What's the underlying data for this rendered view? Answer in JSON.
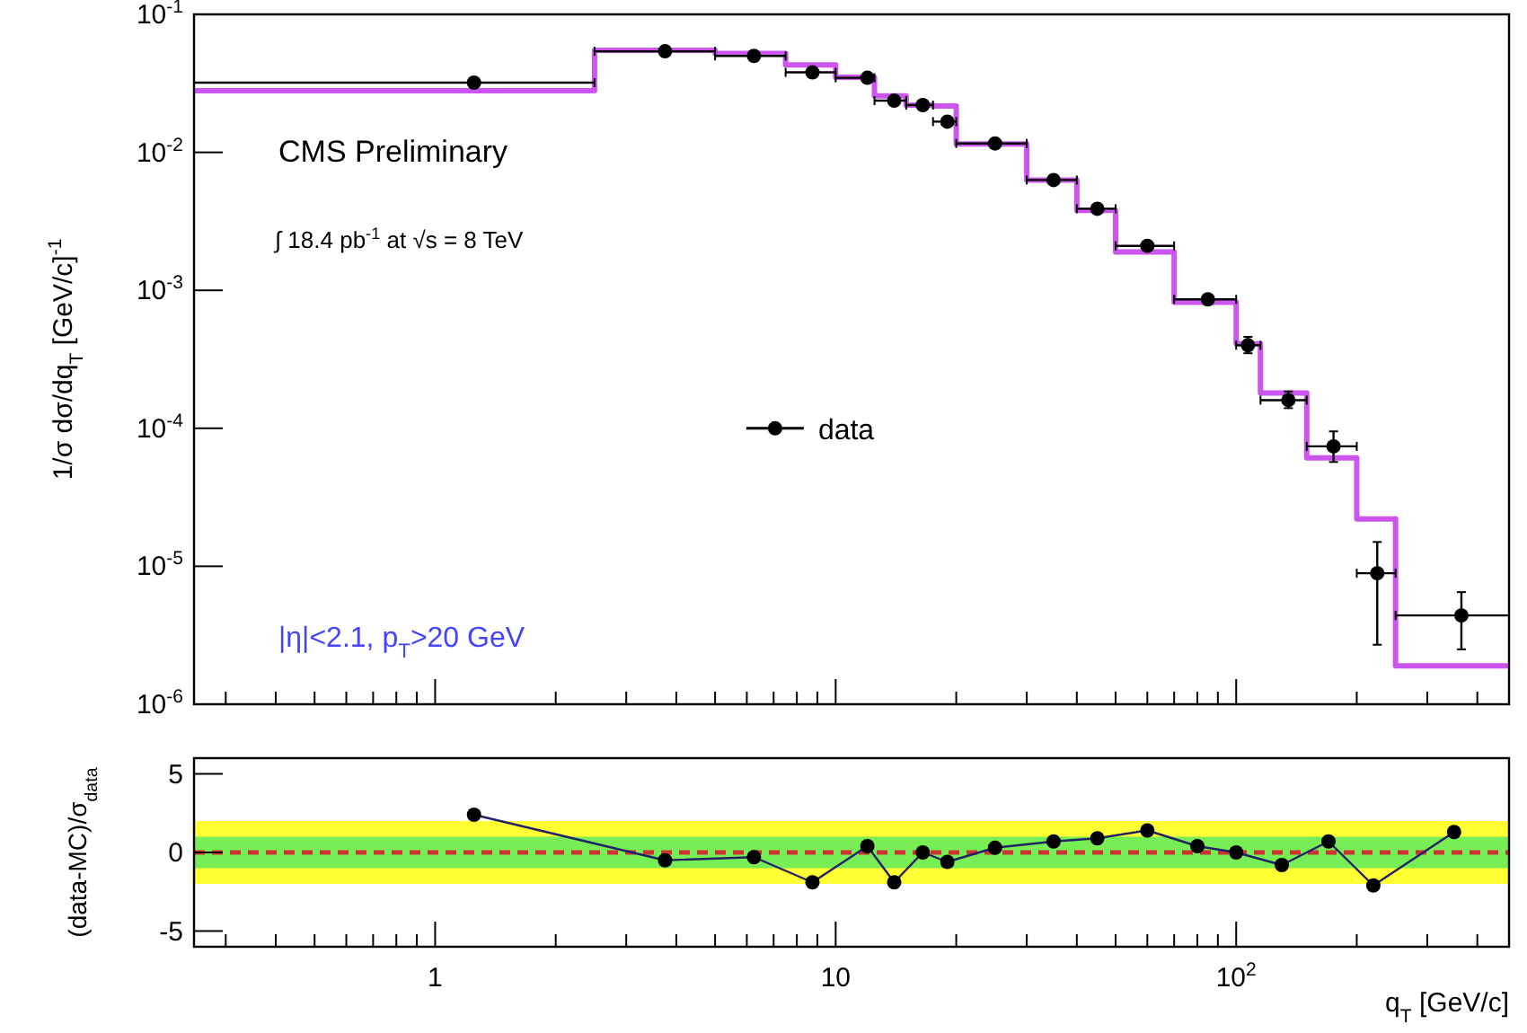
{
  "chart_data": [
    {
      "type": "scatter",
      "ylabel": "1/σ dσ/dq$_{T}$ [GeV/c]$^{-1}$",
      "annotations": [
        "CMS Preliminary",
        "∫ 18.4 pb$^{-1}$ at √s = 8 TeV",
        "|η|<2.1, p$_{T}$>20 GeV"
      ],
      "legend": "right",
      "log": "xy",
      "xlim": [
        0.25,
        480
      ],
      "ylim": [
        1e-06,
        0.1
      ],
      "xticks": [
        {
          "value": 0.3,
          "label": null
        },
        {
          "value": 0.4,
          "label": null
        },
        {
          "value": 0.5,
          "label": null
        },
        {
          "value": 0.6,
          "label": null
        },
        {
          "value": 0.7,
          "label": null
        },
        {
          "value": 0.8,
          "label": null
        },
        {
          "value": 0.9,
          "label": null
        },
        {
          "value": 1,
          "label": null
        },
        {
          "value": 2,
          "label": null
        },
        {
          "value": 3,
          "label": null
        },
        {
          "value": 4,
          "label": null
        },
        {
          "value": 5,
          "label": null
        },
        {
          "value": 6,
          "label": null
        },
        {
          "value": 7,
          "label": null
        },
        {
          "value": 8,
          "label": null
        },
        {
          "value": 9,
          "label": null
        },
        {
          "value": 10,
          "label": null
        },
        {
          "value": 20,
          "label": null
        },
        {
          "value": 30,
          "label": null
        },
        {
          "value": 40,
          "label": null
        },
        {
          "value": 50,
          "label": null
        },
        {
          "value": 60,
          "label": null
        },
        {
          "value": 70,
          "label": null
        },
        {
          "value": 80,
          "label": null
        },
        {
          "value": 90,
          "label": null
        },
        {
          "value": 100,
          "label": null
        },
        {
          "value": 200,
          "label": null
        },
        {
          "value": 300,
          "label": null
        },
        {
          "value": 400,
          "label": null
        }
      ],
      "yticks": [
        {
          "value": 1e-06,
          "label": "10$^{-6}$"
        },
        {
          "value": 1e-05,
          "label": "10$^{-5}$"
        },
        {
          "value": 0.0001,
          "label": "10$^{-4}$"
        },
        {
          "value": 0.001,
          "label": "10$^{-3}$"
        },
        {
          "value": 0.01,
          "label": "10$^{-2}$"
        },
        {
          "value": 0.1,
          "label": "10$^{-1}$"
        }
      ],
      "tick_labels": "y",
      "series": [
        {
          "type": "step",
          "color": "#cc55ee",
          "x": [
            0.25,
            2.5,
            5,
            7.5,
            10,
            12.5,
            15,
            17.5,
            20,
            30,
            40,
            50,
            70,
            100,
            115,
            150,
            200,
            250,
            480
          ],
          "values": [
            0.028,
            0.055,
            0.052,
            0.043,
            0.035,
            0.0257,
            0.022,
            0.0217,
            0.0115,
            0.0063,
            0.0038,
            0.0019,
            0.00082,
            0.00041,
            0.00018,
            6.1e-05,
            2.2e-05,
            1.9e-06,
            1.9e-06
          ]
        },
        {
          "name": "data",
          "color": "#000000",
          "marker": "circle",
          "x": [
            1.25,
            3.75,
            6.25,
            8.75,
            12,
            14,
            16.5,
            19,
            25,
            35,
            45,
            60,
            85,
            107,
            135,
            175,
            225,
            365
          ],
          "values": [
            0.032,
            0.054,
            0.05,
            0.038,
            0.0347,
            0.0237,
            0.022,
            0.0167,
            0.0116,
            0.0063,
            0.0039,
            0.0021,
            0.00086,
            0.0004,
            0.00016,
            7.4e-05,
            8.9e-06,
            4.4e-06
          ],
          "errors": [
            null,
            null,
            null,
            null,
            null,
            null,
            null,
            null,
            null,
            null,
            null,
            null,
            [
              0.0008,
              0.00093
            ],
            [
              0.00035,
              0.00046
            ],
            [
              0.00014,
              0.000185
            ],
            [
              5.7e-05,
              9.5e-05
            ],
            [
              2.7e-06,
              1.5e-05
            ],
            [
              2.5e-06,
              6.5e-06
            ]
          ],
          "xerrors": [
            [
              0.25,
              2.5
            ],
            [
              2.5,
              5
            ],
            [
              5,
              7.5
            ],
            [
              7.5,
              10
            ],
            [
              10,
              12.5
            ],
            [
              12.5,
              15
            ],
            [
              15,
              17.5
            ],
            [
              17.5,
              20
            ],
            [
              20,
              30
            ],
            [
              30,
              40
            ],
            [
              40,
              50
            ],
            [
              50,
              70
            ],
            [
              70,
              100
            ],
            [
              100,
              115
            ],
            [
              115,
              150
            ],
            [
              150,
              200
            ],
            [
              200,
              250
            ],
            [
              250,
              480
            ]
          ]
        }
      ]
    },
    {
      "type": "line",
      "xlabel": "q$_{T}$ [GeV/c]",
      "ylabel": "(data-MC)/σ$_{data}$",
      "log": "x",
      "xlim": [
        0.25,
        480
      ],
      "ylim": [
        -6,
        6
      ],
      "xticks": [
        {
          "value": 0.3,
          "label": null
        },
        {
          "value": 0.4,
          "label": null
        },
        {
          "value": 0.5,
          "label": null
        },
        {
          "value": 0.6,
          "label": null
        },
        {
          "value": 0.7,
          "label": null
        },
        {
          "value": 0.8,
          "label": null
        },
        {
          "value": 0.9,
          "label": null
        },
        {
          "value": 1,
          "label": "1"
        },
        {
          "value": 2,
          "label": null
        },
        {
          "value": 3,
          "label": null
        },
        {
          "value": 4,
          "label": null
        },
        {
          "value": 5,
          "label": null
        },
        {
          "value": 6,
          "label": null
        },
        {
          "value": 7,
          "label": null
        },
        {
          "value": 8,
          "label": null
        },
        {
          "value": 9,
          "label": null
        },
        {
          "value": 10,
          "label": "10"
        },
        {
          "value": 20,
          "label": null
        },
        {
          "value": 30,
          "label": null
        },
        {
          "value": 40,
          "label": null
        },
        {
          "value": 50,
          "label": null
        },
        {
          "value": 60,
          "label": null
        },
        {
          "value": 70,
          "label": null
        },
        {
          "value": 80,
          "label": null
        },
        {
          "value": 90,
          "label": null
        },
        {
          "value": 100,
          "label": "10$^{2}$"
        },
        {
          "value": 200,
          "label": null
        },
        {
          "value": 300,
          "label": null
        },
        {
          "value": 400,
          "label": null
        }
      ],
      "yticks": [
        -5,
        0,
        5
      ],
      "marker": "circle",
      "bands": [
        {
          "axis": "y",
          "from": -2,
          "to": 2,
          "color": "#ffff33"
        },
        {
          "axis": "y",
          "from": -1,
          "to": 1,
          "color": "#77ee55"
        }
      ],
      "ref_lines": [
        {
          "axis": "y",
          "value": 0,
          "color": "#cc3333",
          "line_style": "dashed"
        }
      ],
      "series": [
        {
          "color": "#222266",
          "x": [
            1.25,
            3.75,
            6.25,
            8.75,
            12,
            14,
            16.5,
            19,
            25,
            35,
            45,
            60,
            80,
            100,
            130,
            170,
            220,
            350
          ],
          "values": [
            2.4,
            -0.5,
            -0.3,
            -1.9,
            0.4,
            -1.9,
            0,
            -0.6,
            0.3,
            0.7,
            0.9,
            1.4,
            0.4,
            0,
            -0.8,
            0.7,
            -2.1,
            1.3
          ]
        }
      ]
    }
  ]
}
